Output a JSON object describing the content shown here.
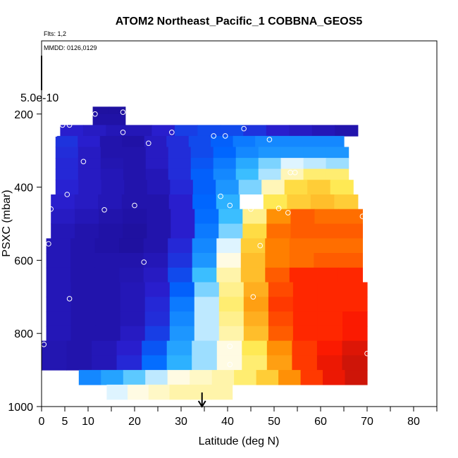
{
  "chart_data": {
    "type": "heatmap",
    "title": "ATOM2 Northeast_Pacific_1 COBBNA_GEOS5",
    "flights_note": "Flts: 1,2",
    "dates_note": "MMDD: 0126,0129",
    "xlabel": "Latitude (deg N)",
    "ylabel": "PSXC (mbar)",
    "xlim": [
      0,
      85
    ],
    "ylim": [
      1000,
      0
    ],
    "x_ticks": [
      0,
      5,
      10,
      20,
      30,
      40,
      50,
      60,
      70,
      80
    ],
    "y_ticks": [
      200,
      400,
      600,
      800,
      1000
    ],
    "color_scale_label": "5.0e-10",
    "arrow_latitude": 34.5,
    "color_stops": [
      "#1a0a8a",
      "#2a1fd0",
      "#0066ff",
      "#33bbff",
      "#ffffff",
      "#ffe84d",
      "#ff8800",
      "#ff1a00",
      "#a01010"
    ],
    "rows": [
      {
        "p": 180,
        "x0": 11,
        "x1": 18,
        "v": [
          0.04,
          0.04
        ]
      },
      {
        "p": 200,
        "x0": 11,
        "x1": 18,
        "v": [
          0.05,
          0.05
        ]
      },
      {
        "p": 230,
        "x0": 4,
        "x1": 68,
        "v": [
          0.12,
          0.1,
          0.08,
          0.08,
          0.12,
          0.18,
          0.2,
          0.2,
          0.16,
          0.12,
          0.1,
          0.08,
          0.06
        ]
      },
      {
        "p": 260,
        "x0": 3,
        "x1": 65,
        "v": [
          0.16,
          0.12,
          0.06,
          0.05,
          0.1,
          0.15,
          0.2,
          0.24,
          0.28,
          0.3,
          0.3,
          0.3,
          0.3
        ]
      },
      {
        "p": 290,
        "x0": 3,
        "x1": 66,
        "v": [
          0.15,
          0.1,
          0.06,
          0.06,
          0.1,
          0.15,
          0.2,
          0.25,
          0.3,
          0.32,
          0.32,
          0.32,
          0.32
        ]
      },
      {
        "p": 320,
        "x0": 3,
        "x1": 66,
        "v": [
          0.14,
          0.1,
          0.07,
          0.06,
          0.1,
          0.15,
          0.22,
          0.28,
          0.35,
          0.42,
          0.48,
          0.46,
          0.44
        ]
      },
      {
        "p": 350,
        "x0": 3,
        "x1": 66,
        "v": [
          0.14,
          0.1,
          0.08,
          0.06,
          0.08,
          0.15,
          0.24,
          0.3,
          0.38,
          0.45,
          0.55,
          0.6,
          0.6
        ]
      },
      {
        "p": 380,
        "x0": 3,
        "x1": 67,
        "v": [
          0.13,
          0.1,
          0.08,
          0.06,
          0.08,
          0.14,
          0.24,
          0.32,
          0.42,
          0.55,
          0.64,
          0.66,
          0.62
        ]
      },
      {
        "p": 420,
        "x0": 2,
        "x1": 68,
        "v": [
          0.12,
          0.1,
          0.08,
          0.06,
          0.06,
          0.12,
          0.25,
          0.36,
          0.5,
          0.62,
          0.66,
          0.68,
          0.66
        ]
      },
      {
        "p": 460,
        "x0": 2,
        "x1": 69,
        "v": [
          0.1,
          0.08,
          0.06,
          0.05,
          0.06,
          0.12,
          0.26,
          0.38,
          0.58,
          0.74,
          0.8,
          0.78,
          0.78
        ]
      },
      {
        "p": 500,
        "x0": 2,
        "x1": 69,
        "v": [
          0.08,
          0.06,
          0.05,
          0.04,
          0.06,
          0.12,
          0.28,
          0.42,
          0.64,
          0.78,
          0.8,
          0.8,
          0.8
        ]
      },
      {
        "p": 540,
        "x0": 1,
        "x1": 69,
        "v": [
          0.08,
          0.06,
          0.05,
          0.04,
          0.06,
          0.14,
          0.3,
          0.48,
          0.66,
          0.76,
          0.78,
          0.78,
          0.78
        ]
      },
      {
        "p": 580,
        "x0": 1,
        "x1": 69,
        "v": [
          0.08,
          0.06,
          0.06,
          0.06,
          0.08,
          0.16,
          0.32,
          0.52,
          0.68,
          0.76,
          0.78,
          0.8,
          0.8
        ]
      },
      {
        "p": 620,
        "x0": 1,
        "x1": 69,
        "v": [
          0.08,
          0.06,
          0.06,
          0.07,
          0.1,
          0.2,
          0.38,
          0.56,
          0.68,
          0.8,
          0.86,
          0.86,
          0.86
        ]
      },
      {
        "p": 660,
        "x0": 1,
        "x1": 70,
        "v": [
          0.08,
          0.06,
          0.06,
          0.08,
          0.12,
          0.24,
          0.42,
          0.58,
          0.7,
          0.82,
          0.86,
          0.86,
          0.86
        ]
      },
      {
        "p": 700,
        "x0": 1,
        "x1": 70,
        "v": [
          0.08,
          0.06,
          0.06,
          0.08,
          0.14,
          0.28,
          0.46,
          0.6,
          0.72,
          0.84,
          0.86,
          0.86,
          0.86
        ]
      },
      {
        "p": 740,
        "x0": 1,
        "x1": 70,
        "v": [
          0.08,
          0.06,
          0.06,
          0.08,
          0.15,
          0.3,
          0.46,
          0.58,
          0.7,
          0.82,
          0.86,
          0.86,
          0.88
        ]
      },
      {
        "p": 780,
        "x0": 1,
        "x1": 70,
        "v": [
          0.08,
          0.06,
          0.06,
          0.1,
          0.18,
          0.32,
          0.46,
          0.56,
          0.68,
          0.8,
          0.86,
          0.86,
          0.88
        ]
      },
      {
        "p": 820,
        "x0": 0,
        "x1": 70,
        "v": [
          0.07,
          0.06,
          0.08,
          0.12,
          0.22,
          0.34,
          0.44,
          0.52,
          0.62,
          0.74,
          0.84,
          0.88,
          0.92
        ]
      },
      {
        "p": 860,
        "x0": 0,
        "x1": 70,
        "v": [
          0.07,
          0.06,
          0.08,
          0.14,
          0.26,
          0.36,
          0.44,
          0.52,
          0.6,
          0.72,
          0.84,
          0.9,
          0.94
        ]
      },
      {
        "p": 900,
        "x0": 8,
        "x1": 70,
        "v": [
          0.3,
          0.34,
          0.4,
          0.46,
          0.52,
          0.54,
          0.56,
          0.6,
          0.66,
          0.74,
          0.84,
          0.9,
          0.94
        ]
      },
      {
        "p": 940,
        "x0": 14,
        "x1": 41,
        "v": [
          0.48,
          0.52,
          0.54,
          0.56,
          0.56,
          0.56
        ]
      }
    ],
    "samples": [
      {
        "x": 11.5,
        "p": 200
      },
      {
        "x": 17.5,
        "p": 195
      },
      {
        "x": 4.5,
        "p": 230
      },
      {
        "x": 6,
        "p": 230
      },
      {
        "x": 3,
        "p": 255
      },
      {
        "x": 17.5,
        "p": 250
      },
      {
        "x": 28,
        "p": 250
      },
      {
        "x": 23,
        "p": 280
      },
      {
        "x": 37,
        "p": 260
      },
      {
        "x": 39.5,
        "p": 260
      },
      {
        "x": 43.5,
        "p": 240
      },
      {
        "x": 49,
        "p": 270
      },
      {
        "x": 64,
        "p": 220
      },
      {
        "x": 9,
        "p": 330
      },
      {
        "x": 53.5,
        "p": 360
      },
      {
        "x": 54.5,
        "p": 360
      },
      {
        "x": 5.5,
        "p": 420
      },
      {
        "x": 38.5,
        "p": 425
      },
      {
        "x": 2,
        "p": 460
      },
      {
        "x": 13.5,
        "p": 462
      },
      {
        "x": 20,
        "p": 450
      },
      {
        "x": 40.5,
        "p": 450
      },
      {
        "x": 45,
        "p": 460
      },
      {
        "x": 51,
        "p": 458
      },
      {
        "x": 53,
        "p": 470
      },
      {
        "x": 69,
        "p": 480
      },
      {
        "x": 1.5,
        "p": 555
      },
      {
        "x": 47,
        "p": 560
      },
      {
        "x": 22,
        "p": 605
      },
      {
        "x": 6,
        "p": 705
      },
      {
        "x": 45.5,
        "p": 700
      },
      {
        "x": 0.5,
        "p": 830
      },
      {
        "x": 40.5,
        "p": 835
      },
      {
        "x": 70,
        "p": 855
      },
      {
        "x": 40.5,
        "p": 885
      }
    ]
  }
}
